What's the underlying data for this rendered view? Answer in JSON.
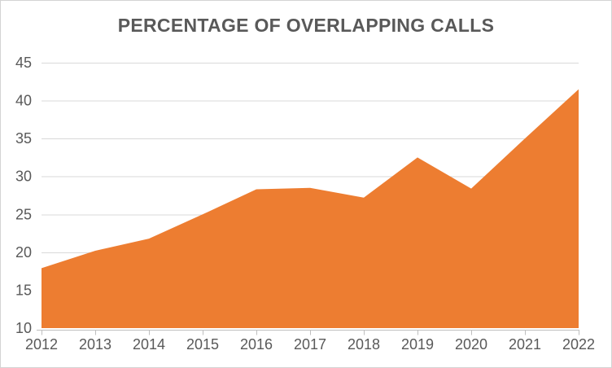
{
  "chart_data": {
    "type": "area",
    "title": "PERCENTAGE OF OVERLAPPING CALLS",
    "xlabel": "",
    "ylabel": "",
    "categories": [
      "2012",
      "2013",
      "2014",
      "2015",
      "2016",
      "2017",
      "2018",
      "2019",
      "2020",
      "2021",
      "2022"
    ],
    "values": [
      17.9,
      20.2,
      21.8,
      25.0,
      28.3,
      28.5,
      27.2,
      32.5,
      28.4,
      35.0,
      41.5
    ],
    "ylim": [
      10,
      45
    ],
    "ytick_step": 5,
    "yticks": [
      10,
      15,
      20,
      25,
      30,
      35,
      40,
      45
    ],
    "grid": true,
    "legend": false,
    "colors": {
      "area_fill": "#ED7D31",
      "gridline": "#D9D9D9",
      "axis_line": "#BFBFBF",
      "label": "#595959",
      "title": "#595959",
      "border": "#D4D4D4",
      "background": "#FFFFFF"
    }
  }
}
